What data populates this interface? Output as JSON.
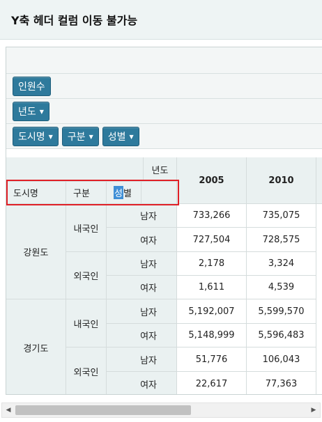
{
  "title": "Y축 헤더 컬럼 이동 불가능",
  "pivot": {
    "measure_chip": "인원수",
    "column_chip": "년도",
    "row_chips": [
      "도시명",
      "구분",
      "성별"
    ]
  },
  "table": {
    "corner_label": "년도",
    "row_headers": [
      "도시명",
      "구분",
      "성별"
    ],
    "row_header_sex_first": "성",
    "row_header_sex_rest": "별",
    "years": [
      "2005",
      "2010"
    ],
    "groups": [
      {
        "city": "강원도",
        "types": [
          {
            "type": "내국인",
            "rows": [
              {
                "sex": "남자",
                "values": [
                  "733,266",
                  "735,075"
                ]
              },
              {
                "sex": "여자",
                "values": [
                  "727,504",
                  "728,575"
                ]
              }
            ]
          },
          {
            "type": "외국인",
            "rows": [
              {
                "sex": "남자",
                "values": [
                  "2,178",
                  "3,324"
                ]
              },
              {
                "sex": "여자",
                "values": [
                  "1,611",
                  "4,539"
                ]
              }
            ]
          }
        ]
      },
      {
        "city": "경기도",
        "types": [
          {
            "type": "내국인",
            "rows": [
              {
                "sex": "남자",
                "values": [
                  "5,192,007",
                  "5,599,570"
                ]
              },
              {
                "sex": "여자",
                "values": [
                  "5,148,999",
                  "5,596,483"
                ]
              }
            ]
          },
          {
            "type": "외국인",
            "rows": [
              {
                "sex": "남자",
                "values": [
                  "51,776",
                  "106,043"
                ]
              },
              {
                "sex": "여자",
                "values": [
                  "22,617",
                  "77,363"
                ]
              }
            ]
          }
        ]
      }
    ]
  },
  "scroll_left_icon": "arrow-left-icon",
  "scroll_right_icon": "arrow-right-icon"
}
